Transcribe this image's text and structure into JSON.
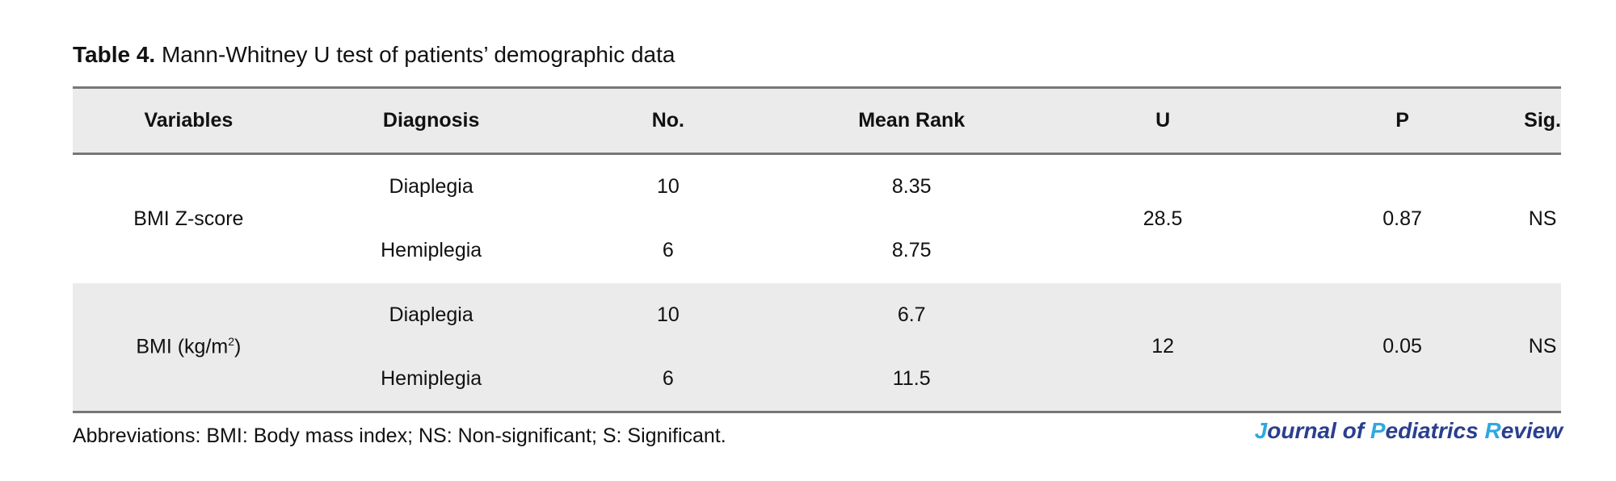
{
  "title": {
    "label": "Table 4.",
    "text": " Mann-Whitney U test of patients’ demographic data"
  },
  "table": {
    "headers": [
      "Variables",
      "Diagnosis",
      "No.",
      "Mean Rank",
      "U",
      "P",
      "Sig."
    ],
    "groups": [
      {
        "variable": "BMI Z-score",
        "rows": [
          {
            "diagnosis": "Diaplegia",
            "no": "10",
            "mean_rank": "8.35"
          },
          {
            "diagnosis": "Hemiplegia",
            "no": "6",
            "mean_rank": "8.75"
          }
        ],
        "u": "28.5",
        "p": "0.87",
        "sig": "NS"
      },
      {
        "variable": "BMI (kg/m",
        "variable_sup": "2",
        "variable_end": ")",
        "rows": [
          {
            "diagnosis": "Diaplegia",
            "no": "10",
            "mean_rank": "6.7"
          },
          {
            "diagnosis": "Hemiplegia",
            "no": "6",
            "mean_rank": "11.5"
          }
        ],
        "u": "12",
        "p": "0.05",
        "sig": "NS"
      }
    ]
  },
  "footnote": "Abbreviations: BMI: Body mass index; NS: Non-significant; S: Significant.",
  "logo": {
    "text": "Journal of Pediatrics Review",
    "colors": {
      "dark": "#2a3f8f",
      "light": "#2fa8e0"
    }
  }
}
